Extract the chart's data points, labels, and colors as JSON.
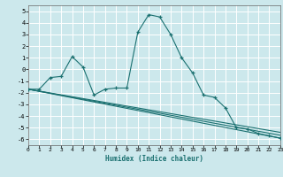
{
  "title": "",
  "xlabel": "Humidex (Indice chaleur)",
  "ylabel": "",
  "bg_color": "#cce8ec",
  "grid_color": "#ffffff",
  "line_color": "#1a7070",
  "marker_color": "#1a7070",
  "xlim": [
    0,
    23
  ],
  "ylim": [
    -6.5,
    5.5
  ],
  "xticks": [
    0,
    1,
    2,
    3,
    4,
    5,
    6,
    7,
    8,
    9,
    10,
    11,
    12,
    13,
    14,
    15,
    16,
    17,
    18,
    19,
    20,
    21,
    22,
    23
  ],
  "yticks": [
    -6,
    -5,
    -4,
    -3,
    -2,
    -1,
    0,
    1,
    2,
    3,
    4,
    5
  ],
  "series1_x": [
    0,
    1,
    2,
    3,
    4,
    5,
    6,
    7,
    8,
    9,
    10,
    11,
    12,
    13,
    14,
    15,
    16,
    17,
    18,
    19,
    20,
    21,
    22,
    23
  ],
  "series1_y": [
    -1.7,
    -1.7,
    -0.7,
    -0.6,
    1.1,
    0.2,
    -2.2,
    -1.7,
    -1.6,
    -1.6,
    3.2,
    4.7,
    4.5,
    3.0,
    1.0,
    -0.3,
    -2.2,
    -2.4,
    -3.3,
    -5.0,
    -5.1,
    -5.5,
    -5.7,
    -5.9
  ],
  "trend1_x": [
    0,
    23
  ],
  "trend1_y": [
    -1.7,
    -5.4
  ],
  "trend2_x": [
    0,
    23
  ],
  "trend2_y": [
    -1.7,
    -5.9
  ],
  "trend3_x": [
    0,
    23
  ],
  "trend3_y": [
    -1.7,
    -5.65
  ]
}
